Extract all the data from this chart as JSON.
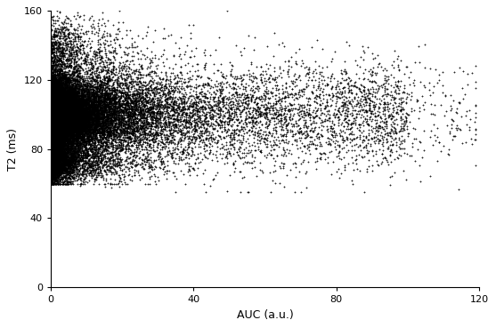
{
  "title": "",
  "xlabel": "AUC (a.u.)",
  "ylabel": "T2 (ms)",
  "xlim": [
    0,
    120
  ],
  "ylim": [
    0,
    160
  ],
  "xticks": [
    0,
    40,
    80,
    120
  ],
  "yticks": [
    0,
    40,
    80,
    120,
    160
  ],
  "point_color": "black",
  "point_size": 1.2,
  "marker": "+",
  "background_color": "white",
  "seed": 42
}
